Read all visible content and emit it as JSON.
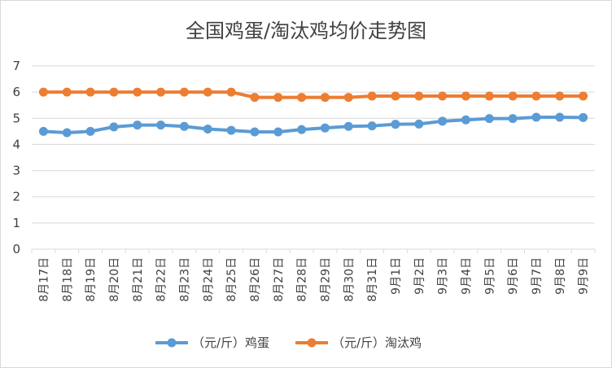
{
  "chart_data": {
    "type": "line",
    "title": "全国鸡蛋/淘汰鸡均价走势图",
    "categories": [
      "8月17日",
      "8月18日",
      "8月19日",
      "8月20日",
      "8月21日",
      "8月22日",
      "8月23日",
      "8月24日",
      "8月25日",
      "8月26日",
      "8月27日",
      "8月28日",
      "8月29日",
      "8月30日",
      "8月31日",
      "9月1日",
      "9月2日",
      "9月3日",
      "9月4日",
      "9月5日",
      "9月6日",
      "9月7日",
      "9月8日",
      "9月9日"
    ],
    "ylim": [
      0,
      7
    ],
    "yticks": [
      "0",
      "1",
      "2",
      "3",
      "4",
      "5",
      "6",
      "7"
    ],
    "grid": true,
    "legend_position": "bottom",
    "series": [
      {
        "name": "（元/斤）鸡蛋",
        "color": "#5B9BD5",
        "values": [
          4.5,
          4.45,
          4.5,
          4.67,
          4.74,
          4.74,
          4.69,
          4.59,
          4.54,
          4.48,
          4.48,
          4.57,
          4.63,
          4.69,
          4.71,
          4.77,
          4.78,
          4.89,
          4.94,
          4.99,
          4.99,
          5.04,
          5.04,
          5.03
        ]
      },
      {
        "name": "（元/斤）淘汰鸡",
        "color": "#ED7D31",
        "values": [
          6.0,
          6.0,
          6.0,
          6.0,
          6.0,
          6.0,
          6.0,
          6.0,
          6.0,
          5.8,
          5.8,
          5.8,
          5.8,
          5.8,
          5.85,
          5.85,
          5.85,
          5.85,
          5.85,
          5.85,
          5.85,
          5.85,
          5.85,
          5.85
        ]
      }
    ]
  }
}
